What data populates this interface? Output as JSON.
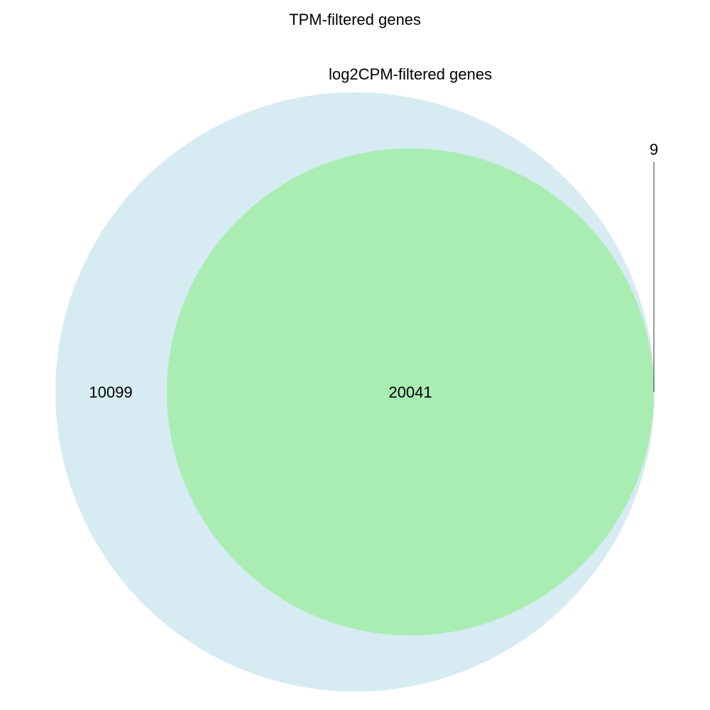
{
  "diagram": {
    "type": "venn",
    "sets": [
      {
        "label": "TPM-filtered genes",
        "color": "#add8e6",
        "opacity": 0.5
      },
      {
        "label": "log2CPM-filtered genes",
        "color": "#90ee90",
        "opacity": 0.65
      }
    ],
    "regions": {
      "tpm_only": "10099",
      "both": "20041",
      "log2cpm_only": "9"
    }
  }
}
